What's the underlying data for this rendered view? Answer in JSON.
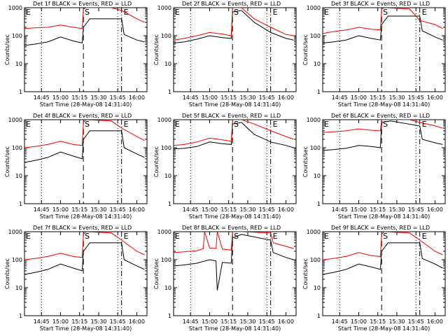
{
  "colors": {
    "events": "#000000",
    "lld": "#ff0000",
    "background": "#ffffff"
  },
  "common": {
    "xlabel": "Start Time (28-May-08 14:31:40)",
    "ylabel": "Counts/sec",
    "x_ticks": [
      "14:45",
      "15:00",
      "15:15",
      "15:30",
      "15:45",
      "16:00"
    ],
    "y_ticks": [
      "1",
      "10",
      "100",
      "1000"
    ],
    "dotted_line_times": [
      "14:45",
      "15:45"
    ],
    "dashed_line_time": "15:18",
    "dashdot_line_time": "15:48",
    "markers": {
      "E": "E",
      "S": "S"
    }
  },
  "chart_data": [
    {
      "type": "line",
      "title": "Det 1f BLACK = Events, RED = LLD",
      "xlabel": "Start Time (28-May-08 14:31:40)",
      "ylabel": "Counts/sec",
      "ylim": [
        1,
        1000
      ],
      "y_scale": "log",
      "x_range": [
        "14:31:40",
        "16:08"
      ],
      "grid": false,
      "series": [
        {
          "name": "Events",
          "color": "#000000",
          "x": [
            "14:32",
            "14:40",
            "14:50",
            "15:00",
            "15:10",
            "15:17",
            "15:18",
            "15:23",
            "15:48",
            "15:50",
            "16:00",
            "16:06"
          ],
          "values": [
            45,
            50,
            60,
            90,
            65,
            55,
            200,
            400,
            400,
            110,
            70,
            60
          ]
        },
        {
          "name": "LLD",
          "color": "#ff0000",
          "x": [
            "14:32",
            "14:40",
            "14:50",
            "15:00",
            "15:10",
            "15:17",
            "15:18",
            "15:20",
            "15:40",
            "15:48",
            "16:00",
            "16:06"
          ],
          "values": [
            180,
            190,
            200,
            240,
            200,
            180,
            900,
            1000,
            1000,
            800,
            400,
            300
          ]
        }
      ]
    },
    {
      "type": "line",
      "title": "Det 2f BLACK = Events, RED = LLD",
      "xlabel": "Start Time (28-May-08 14:31:40)",
      "ylabel": "Counts/sec",
      "ylim": [
        1,
        1000
      ],
      "y_scale": "log",
      "x_range": [
        "14:31:40",
        "16:08"
      ],
      "grid": false,
      "series": [
        {
          "name": "Events",
          "color": "#000000",
          "x": [
            "14:32",
            "14:40",
            "14:50",
            "15:00",
            "15:10",
            "15:17",
            "15:18",
            "15:25",
            "15:35",
            "15:48",
            "16:00",
            "16:06"
          ],
          "values": [
            55,
            60,
            75,
            100,
            85,
            80,
            700,
            800,
            300,
            130,
            80,
            70
          ]
        },
        {
          "name": "LLD",
          "color": "#ff0000",
          "x": [
            "14:32",
            "14:40",
            "14:50",
            "15:00",
            "15:10",
            "15:17",
            "15:18",
            "15:25",
            "15:35",
            "15:48",
            "16:00",
            "16:06"
          ],
          "values": [
            70,
            80,
            100,
            130,
            115,
            100,
            1000,
            1000,
            400,
            200,
            110,
            100
          ]
        }
      ]
    },
    {
      "type": "line",
      "title": "Det 3f BLACK = Events, RED = LLD",
      "xlabel": "Start Time (28-May-08 14:31:40)",
      "ylabel": "Counts/sec",
      "ylim": [
        1,
        1000
      ],
      "y_scale": "log",
      "x_range": [
        "14:31:40",
        "16:08"
      ],
      "grid": false,
      "series": [
        {
          "name": "Events",
          "color": "#000000",
          "x": [
            "14:32",
            "14:40",
            "14:50",
            "15:00",
            "15:10",
            "15:17",
            "15:18",
            "15:23",
            "15:48",
            "15:50",
            "16:00",
            "16:06"
          ],
          "values": [
            55,
            60,
            70,
            100,
            80,
            70,
            250,
            500,
            500,
            150,
            90,
            70
          ]
        },
        {
          "name": "LLD",
          "color": "#ff0000",
          "x": [
            "14:32",
            "14:40",
            "14:50",
            "15:00",
            "15:10",
            "15:17",
            "15:18",
            "15:20",
            "15:40",
            "15:48",
            "16:00",
            "16:06"
          ],
          "values": [
            120,
            140,
            160,
            200,
            170,
            160,
            900,
            1000,
            900,
            350,
            250,
            180
          ]
        }
      ]
    },
    {
      "type": "line",
      "title": "Det 4f BLACK = Events, RED = LLD",
      "xlabel": "Start Time (28-May-08 14:31:40)",
      "ylabel": "Counts/sec",
      "ylim": [
        1,
        1000
      ],
      "y_scale": "log",
      "x_range": [
        "14:31:40",
        "16:08"
      ],
      "grid": false,
      "series": [
        {
          "name": "Events",
          "color": "#000000",
          "x": [
            "14:32",
            "14:40",
            "14:50",
            "15:00",
            "15:10",
            "15:17",
            "15:18",
            "15:23",
            "15:48",
            "15:50",
            "16:00",
            "16:06"
          ],
          "values": [
            30,
            35,
            45,
            70,
            50,
            40,
            200,
            400,
            400,
            100,
            60,
            45
          ]
        },
        {
          "name": "LLD",
          "color": "#ff0000",
          "x": [
            "14:32",
            "14:40",
            "14:50",
            "15:00",
            "15:10",
            "15:17",
            "15:18",
            "15:20",
            "15:40",
            "15:48",
            "16:00",
            "16:06"
          ],
          "values": [
            100,
            110,
            130,
            170,
            130,
            120,
            800,
            1000,
            900,
            500,
            250,
            180
          ]
        }
      ]
    },
    {
      "type": "line",
      "title": "Det 5f BLACK = Events, RED = LLD",
      "xlabel": "Start Time (28-May-08 14:31:40)",
      "ylabel": "Counts/sec",
      "ylim": [
        1,
        1000
      ],
      "y_scale": "log",
      "x_range": [
        "14:31:40",
        "16:08"
      ],
      "grid": false,
      "series": [
        {
          "name": "Events",
          "color": "#000000",
          "x": [
            "14:32",
            "14:40",
            "14:50",
            "15:00",
            "15:10",
            "15:17",
            "15:18",
            "15:25",
            "15:35",
            "15:48",
            "16:00",
            "16:06"
          ],
          "values": [
            90,
            95,
            110,
            160,
            140,
            130,
            700,
            800,
            300,
            160,
            120,
            100
          ]
        },
        {
          "name": "LLD",
          "color": "#ff0000",
          "x": [
            "14:32",
            "14:40",
            "14:50",
            "15:00",
            "15:10",
            "15:17",
            "15:18",
            "15:25",
            "15:35",
            "15:48",
            "16:00",
            "16:06"
          ],
          "values": [
            120,
            130,
            160,
            220,
            190,
            170,
            1000,
            1000,
            700,
            400,
            250,
            200
          ]
        }
      ]
    },
    {
      "type": "line",
      "title": "Det 6f BLACK = Events, RED = LLD",
      "xlabel": "Start Time (28-May-08 14:31:40)",
      "ylabel": "Counts/sec",
      "ylim": [
        1,
        1000
      ],
      "y_scale": "log",
      "x_range": [
        "14:31:40",
        "16:08"
      ],
      "grid": false,
      "series": [
        {
          "name": "Events",
          "color": "#000000",
          "x": [
            "14:32",
            "14:40",
            "14:50",
            "15:00",
            "15:10",
            "15:17",
            "15:18",
            "15:25",
            "15:48",
            "15:50",
            "16:00",
            "16:06"
          ],
          "values": [
            80,
            85,
            95,
            120,
            110,
            100,
            800,
            900,
            600,
            200,
            150,
            130
          ]
        },
        {
          "name": "LLD",
          "color": "#ff0000",
          "x": [
            "14:32",
            "14:40",
            "14:50",
            "15:00",
            "15:10",
            "15:17",
            "15:18",
            "15:25",
            "15:40",
            "15:48",
            "16:00",
            "16:06"
          ],
          "values": [
            350,
            370,
            400,
            470,
            420,
            400,
            1000,
            1000,
            1000,
            800,
            600,
            500
          ]
        }
      ]
    },
    {
      "type": "line",
      "title": "Det 7f BLACK = Events, RED = LLD",
      "xlabel": "Start Time (28-May-08 14:31:40)",
      "ylabel": "Counts/sec",
      "ylim": [
        1,
        1000
      ],
      "y_scale": "log",
      "x_range": [
        "14:31:40",
        "16:08"
      ],
      "grid": false,
      "series": [
        {
          "name": "Events",
          "color": "#000000",
          "x": [
            "14:32",
            "14:40",
            "14:50",
            "15:00",
            "15:10",
            "15:17",
            "15:18",
            "15:23",
            "15:48",
            "15:50",
            "16:00",
            "16:06"
          ],
          "values": [
            30,
            35,
            45,
            70,
            50,
            40,
            200,
            400,
            400,
            100,
            60,
            45
          ]
        },
        {
          "name": "LLD",
          "color": "#ff0000",
          "x": [
            "14:32",
            "14:40",
            "14:50",
            "15:00",
            "15:10",
            "15:17",
            "15:18",
            "15:20",
            "15:40",
            "15:48",
            "16:00",
            "16:06"
          ],
          "values": [
            100,
            110,
            130,
            170,
            130,
            120,
            800,
            1000,
            900,
            500,
            200,
            150
          ]
        }
      ]
    },
    {
      "type": "line",
      "title": "Det 8f BLACK = Events, RED = LLD",
      "xlabel": "Start Time (28-May-08 14:31:40)",
      "ylabel": "Counts/sec",
      "ylim": [
        1,
        1000
      ],
      "y_scale": "log",
      "x_range": [
        "14:31:40",
        "16:08"
      ],
      "grid": false,
      "series": [
        {
          "name": "Events",
          "color": "#000000",
          "x": [
            "14:32",
            "14:40",
            "14:50",
            "15:00",
            "15:05",
            "15:06",
            "15:10",
            "15:17",
            "15:18",
            "15:25",
            "15:48",
            "15:50",
            "16:00",
            "16:06"
          ],
          "values": [
            60,
            65,
            75,
            100,
            90,
            8,
            80,
            75,
            600,
            800,
            500,
            180,
            120,
            100
          ]
        },
        {
          "name": "LLD",
          "color": "#ff0000",
          "x": [
            "14:32",
            "14:40",
            "14:50",
            "14:55",
            "14:56",
            "15:00",
            "15:05",
            "15:06",
            "15:10",
            "15:17",
            "15:18",
            "15:25",
            "15:48",
            "15:50",
            "16:00",
            "16:06"
          ],
          "values": [
            180,
            190,
            210,
            250,
            1000,
            260,
            250,
            1000,
            240,
            220,
            1000,
            1000,
            900,
            400,
            300,
            250
          ]
        }
      ]
    },
    {
      "type": "line",
      "title": "Det 9f BLACK = Events, RED = LLD",
      "xlabel": "Start Time (28-May-08 14:31:40)",
      "ylabel": "Counts/sec",
      "ylim": [
        1,
        1000
      ],
      "y_scale": "log",
      "x_range": [
        "14:31:40",
        "16:08"
      ],
      "grid": false,
      "series": [
        {
          "name": "Events",
          "color": "#000000",
          "x": [
            "14:32",
            "14:40",
            "14:50",
            "15:00",
            "15:10",
            "15:17",
            "15:18",
            "15:23",
            "15:48",
            "15:50",
            "16:00",
            "16:06"
          ],
          "values": [
            30,
            35,
            45,
            70,
            55,
            45,
            200,
            400,
            400,
            110,
            70,
            50
          ]
        },
        {
          "name": "LLD",
          "color": "#ff0000",
          "x": [
            "14:32",
            "14:40",
            "14:50",
            "15:00",
            "15:10",
            "15:17",
            "15:18",
            "15:20",
            "15:40",
            "15:48",
            "16:00",
            "16:06"
          ],
          "values": [
            100,
            110,
            130,
            180,
            140,
            130,
            800,
            1000,
            900,
            500,
            200,
            150
          ]
        }
      ]
    }
  ]
}
